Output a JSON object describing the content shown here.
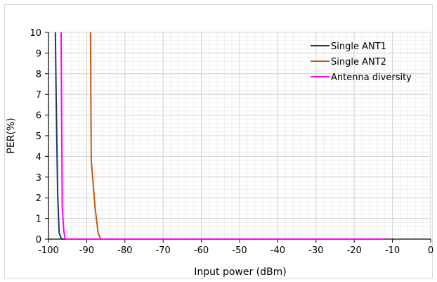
{
  "chart_data": {
    "type": "line",
    "title": "",
    "xlabel": "Input power (dBm)",
    "ylabel": "PER(%)",
    "xlim": [
      -100,
      0
    ],
    "ylim": [
      0,
      10
    ],
    "x_ticks": [
      -100,
      -90,
      -80,
      -70,
      -60,
      -50,
      -40,
      -30,
      -20,
      -10,
      0
    ],
    "y_ticks": [
      0,
      1,
      2,
      3,
      4,
      5,
      6,
      7,
      8,
      9,
      10
    ],
    "grid": true,
    "legend_position": "top-right",
    "series": [
      {
        "name": "Single ANT1",
        "color": "#1f3864",
        "points": [
          [
            -98.2,
            10
          ],
          [
            -98.0,
            7.0
          ],
          [
            -97.8,
            4.5
          ],
          [
            -97.6,
            2.2
          ],
          [
            -97.2,
            0.3
          ],
          [
            -96.6,
            0
          ],
          [
            -12,
            0
          ]
        ]
      },
      {
        "name": "Single ANT2",
        "color": "#c55a11",
        "points": [
          [
            -89,
            10
          ],
          [
            -88.8,
            3.8
          ],
          [
            -87.8,
            1.5
          ],
          [
            -87,
            0.3
          ],
          [
            -86.3,
            0
          ],
          [
            -12,
            0
          ]
        ]
      },
      {
        "name": "Antenna diversity",
        "color": "#ff00ff",
        "points": [
          [
            -96.7,
            10
          ],
          [
            -96.6,
            7.0
          ],
          [
            -96.4,
            1.5
          ],
          [
            -96.0,
            0.4
          ],
          [
            -95.6,
            0
          ],
          [
            -12,
            0
          ]
        ]
      }
    ]
  }
}
